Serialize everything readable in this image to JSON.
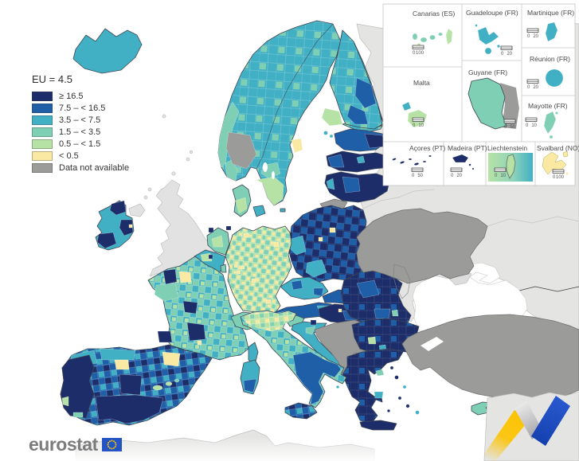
{
  "legend": {
    "title": "EU = 4.5",
    "classes": [
      {
        "label": "≥ 16.5",
        "color": "#1d2d69"
      },
      {
        "label": "7.5 – < 16.5",
        "color": "#1f5fa8"
      },
      {
        "label": "3.5 – < 7.5",
        "color": "#41b0c4"
      },
      {
        "label": "1.5 – < 3.5",
        "color": "#7fcfb4"
      },
      {
        "label": "0.5 – < 1.5",
        "color": "#b7e2a6"
      },
      {
        "label": "< 0.5",
        "color": "#f9e9a3"
      },
      {
        "label": "Data not available",
        "color": "#9b9b9a"
      }
    ]
  },
  "insets": [
    {
      "name": "Canarias (ES)",
      "scale_from": "0",
      "scale_to": "100"
    },
    {
      "name": "Guadeloupe (FR)",
      "scale_from": "0",
      "scale_to": "20"
    },
    {
      "name": "Martinique (FR)",
      "scale_from": "0",
      "scale_to": "20"
    },
    {
      "name": "Réunion (FR)",
      "scale_from": "0",
      "scale_to": "20"
    },
    {
      "name": "Malta",
      "scale_from": "0",
      "scale_to": "10"
    },
    {
      "name": "Guyane (FR)",
      "scale_from": "0",
      "scale_to": "50"
    },
    {
      "name": "Mayotte (FR)",
      "scale_from": "0",
      "scale_to": "10"
    },
    {
      "name": "Açores (PT)",
      "scale_from": "0",
      "scale_to": "50"
    },
    {
      "name": "Madeira (PT)",
      "scale_from": "0",
      "scale_to": "20"
    },
    {
      "name": "Liechtenstein",
      "scale_from": "0",
      "scale_to": "10"
    },
    {
      "name": "Svalbard (NO)",
      "scale_from": "0",
      "scale_to": "100"
    }
  ],
  "logo": {
    "text": "eurostat"
  },
  "palette": {
    "navy": "#1d2d69",
    "blue": "#1f5fa8",
    "teal": "#41b0c4",
    "seafoam": "#7fcfb4",
    "green": "#b7e2a6",
    "yellow": "#f9e9a3",
    "nodata": "#9b9b9a",
    "noneu": "#e4e4e3",
    "ribbon-yellow": "#fdc300",
    "ribbon-blue": "#1c4bc0",
    "flag-blue": "#2453c4",
    "flag-star": "#ffcc00",
    "logo-gray": "#7c7c7c"
  }
}
